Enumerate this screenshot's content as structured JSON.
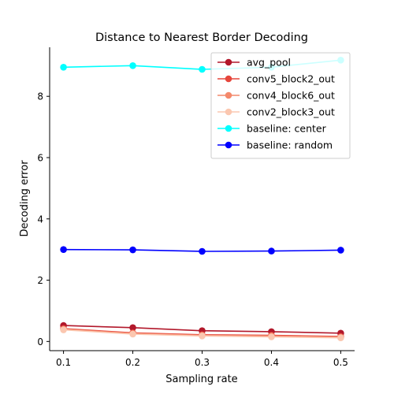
{
  "chart_data": {
    "type": "line",
    "title": "Distance to Nearest Border Decoding",
    "xlabel": "Sampling rate",
    "ylabel": "Decoding error",
    "x": [
      0.1,
      0.2,
      0.3,
      0.4,
      0.5
    ],
    "x_ticks": [
      "0.1",
      "0.2",
      "0.3",
      "0.4",
      "0.5"
    ],
    "y_ticks": [
      0,
      2,
      4,
      6,
      8
    ],
    "xlim": [
      0.08,
      0.52
    ],
    "ylim": [
      -0.3,
      9.6
    ],
    "grid": false,
    "legend_position": "top-right",
    "series": [
      {
        "name": "avg_pool",
        "color": "#b2182b",
        "values": [
          0.52,
          0.45,
          0.35,
          0.32,
          0.27
        ]
      },
      {
        "name": "conv5_block2_out",
        "color": "#e6463c",
        "values": [
          0.42,
          0.28,
          0.22,
          0.2,
          0.16
        ]
      },
      {
        "name": "conv4_block6_out",
        "color": "#f4896b",
        "values": [
          0.4,
          0.26,
          0.2,
          0.18,
          0.14
        ]
      },
      {
        "name": "conv2_block3_out",
        "color": "#fbc7b0",
        "values": [
          0.38,
          0.24,
          0.18,
          0.15,
          0.12
        ]
      },
      {
        "name": "baseline: center",
        "color": "#00ffff",
        "values": [
          8.95,
          9.0,
          8.88,
          8.95,
          9.18
        ]
      },
      {
        "name": "baseline: random",
        "color": "#0000ff",
        "values": [
          3.0,
          2.99,
          2.94,
          2.95,
          2.98
        ]
      }
    ]
  }
}
